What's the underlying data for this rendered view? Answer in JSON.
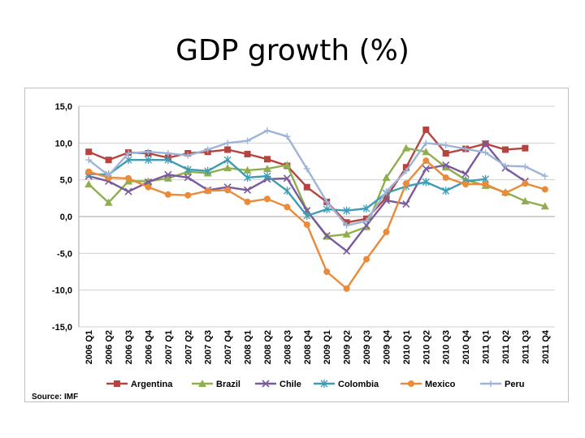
{
  "slide": {
    "title": "GDP growth (%)"
  },
  "chart_data": {
    "type": "line",
    "title": "",
    "xlabel": "",
    "ylabel": "",
    "ylim": [
      -15,
      15
    ],
    "yticks": [
      15,
      10,
      5,
      0,
      -5,
      -10,
      -15
    ],
    "ytick_labels": [
      "15,0",
      "10,0",
      "5,0",
      "0,0",
      "-5,0",
      "-10,0",
      "-15,0"
    ],
    "grid": true,
    "legend_position": "bottom",
    "source": "Source: IMF",
    "categories": [
      "2006 Q1",
      "2006 Q2",
      "2006 Q3",
      "2006 Q4",
      "2007 Q1",
      "2007 Q2",
      "2007 Q3",
      "2007 Q4",
      "2008 Q1",
      "2008 Q2",
      "2008 Q3",
      "2008 Q4",
      "2009 Q1",
      "2009 Q2",
      "2009 Q3",
      "2009 Q4",
      "2010 Q1",
      "2010 Q2",
      "2010 Q3",
      "2010 Q4",
      "2011 Q1",
      "2011 Q2",
      "2011 Q3",
      "2011 Q4"
    ],
    "series": [
      {
        "name": "Argentina",
        "color": "#b5443f",
        "marker": "square",
        "values": [
          8.8,
          7.7,
          8.7,
          8.6,
          8.0,
          8.6,
          8.8,
          9.1,
          8.5,
          7.8,
          6.9,
          4.0,
          2.0,
          -0.8,
          -0.3,
          2.6,
          6.7,
          11.8,
          8.6,
          9.2,
          9.9,
          9.1,
          9.3,
          null
        ]
      },
      {
        "name": "Brazil",
        "color": "#8faf4f",
        "marker": "triangle",
        "values": [
          4.4,
          1.9,
          4.8,
          4.8,
          5.2,
          6.1,
          5.9,
          6.6,
          6.3,
          6.5,
          7.0,
          0.8,
          -2.7,
          -2.4,
          -1.4,
          5.3,
          9.3,
          8.8,
          6.7,
          5.0,
          4.2,
          3.3,
          2.1,
          1.4
        ]
      },
      {
        "name": "Chile",
        "color": "#7a5a9e",
        "marker": "x",
        "values": [
          5.5,
          4.8,
          3.4,
          4.7,
          5.7,
          5.3,
          3.6,
          4.0,
          3.6,
          5.1,
          5.2,
          0.8,
          -2.6,
          -4.7,
          -1.2,
          2.2,
          1.7,
          6.5,
          7.0,
          5.8,
          9.9,
          6.6,
          4.8,
          null
        ]
      },
      {
        "name": "Colombia",
        "color": "#3e9cb5",
        "marker": "star",
        "values": [
          5.8,
          5.7,
          7.7,
          7.7,
          7.7,
          6.4,
          6.2,
          7.7,
          5.3,
          5.5,
          3.5,
          0.1,
          1.0,
          0.8,
          1.1,
          3.2,
          4.1,
          4.7,
          3.5,
          4.8,
          5.1,
          null,
          null,
          null
        ]
      },
      {
        "name": "Mexico",
        "color": "#e98b3a",
        "marker": "circle",
        "values": [
          6.1,
          5.3,
          5.2,
          4.0,
          3.0,
          2.9,
          3.5,
          3.6,
          2.0,
          2.4,
          1.3,
          -1.1,
          -7.5,
          -9.8,
          -5.8,
          -2.1,
          4.5,
          7.6,
          5.3,
          4.4,
          4.4,
          3.2,
          4.5,
          3.7
        ]
      },
      {
        "name": "Peru",
        "color": "#9db3d8",
        "marker": "plus",
        "values": [
          7.7,
          5.6,
          8.6,
          8.8,
          8.6,
          8.3,
          9.1,
          10.0,
          10.3,
          11.7,
          10.9,
          6.5,
          2.0,
          -1.2,
          -0.6,
          3.4,
          6.2,
          10.0,
          9.7,
          9.2,
          8.7,
          6.9,
          6.8,
          5.5
        ]
      }
    ]
  }
}
